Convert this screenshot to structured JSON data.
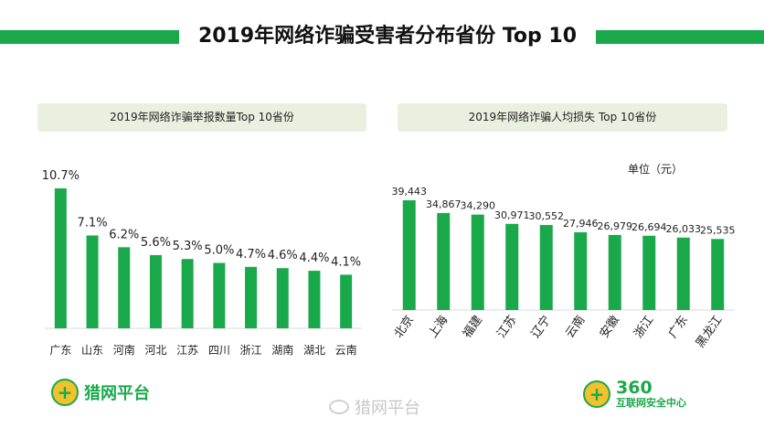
{
  "header": {
    "title": "2019年网络诈骗受害者分布省份 Top 10"
  },
  "colors": {
    "bar": "#1aa94a",
    "accent": "#1aa94a",
    "subtitle_bg": "#eaf0e0"
  },
  "chart_data": [
    {
      "type": "bar",
      "title": "2019年网络诈骗举报数量Top 10省份",
      "categories": [
        "广东",
        "山东",
        "河南",
        "河北",
        "江苏",
        "四川",
        "浙江",
        "湖南",
        "湖北",
        "云南"
      ],
      "values": [
        10.7,
        7.1,
        6.2,
        5.6,
        5.3,
        5.0,
        4.7,
        4.6,
        4.4,
        4.1
      ],
      "value_labels": [
        "10.7%",
        "7.1%",
        "6.2%",
        "5.6%",
        "5.3%",
        "5.0%",
        "4.7%",
        "4.6%",
        "4.4%",
        "4.1%"
      ],
      "ylim": [
        0,
        10.7
      ],
      "grid": false
    },
    {
      "type": "bar",
      "title": "2019年网络诈骗人均损失 Top 10省份",
      "unit": "单位（元）",
      "categories": [
        "北京",
        "上海",
        "福建",
        "江苏",
        "辽宁",
        "云南",
        "安徽",
        "浙江",
        "广东",
        "黑龙江"
      ],
      "values": [
        39443,
        34867,
        34290,
        30971,
        30552,
        27946,
        26979,
        26694,
        26033,
        25535
      ],
      "value_labels": [
        "39,443",
        "34,867",
        "34,290",
        "30,971",
        "30,552",
        "27,946",
        "26,979",
        "26,694",
        "26,033",
        "25,535"
      ],
      "ylim": [
        0,
        39443
      ],
      "grid": false
    }
  ],
  "logos": {
    "left": {
      "text": "猎网平台",
      "icon": "plus-badge-icon"
    },
    "right": {
      "number": "360",
      "text": "互联网安全中心",
      "icon": "plus-badge-icon"
    }
  },
  "watermark": {
    "text": "猎网平台",
    "icon": "weibo-icon"
  }
}
